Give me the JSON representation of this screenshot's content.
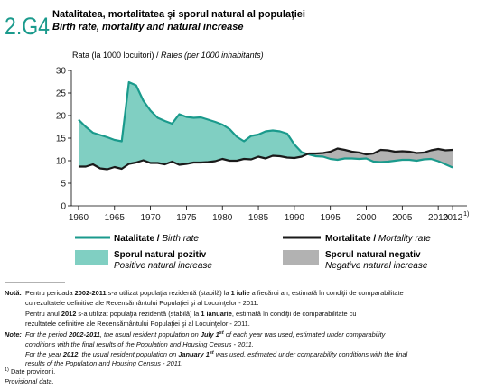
{
  "chart_data": {
    "type": "line",
    "figure_id": "2.G4",
    "title": "Natalitatea, mortalitatea şi sporul natural al populaţiei",
    "subtitle": "Birth rate, mortality and natural increase",
    "y_label": "Rata (la 1000 locuitori) / ",
    "y_label_en": "Rates (per 1000 inhabitants)",
    "x": [
      1960,
      1961,
      1962,
      1963,
      1964,
      1965,
      1966,
      1967,
      1968,
      1969,
      1970,
      1971,
      1972,
      1973,
      1974,
      1975,
      1976,
      1977,
      1978,
      1979,
      1980,
      1981,
      1982,
      1983,
      1984,
      1985,
      1986,
      1987,
      1988,
      1989,
      1990,
      1991,
      1992,
      1993,
      1994,
      1995,
      1996,
      1997,
      1998,
      1999,
      2000,
      2001,
      2002,
      2003,
      2004,
      2005,
      2006,
      2007,
      2008,
      2009,
      2010,
      2011,
      2012
    ],
    "series": [
      {
        "name": "Natalitate /",
        "name_en": "Birth rate",
        "color": "#1a9a8c",
        "values": [
          19.1,
          17.5,
          16.2,
          15.7,
          15.2,
          14.6,
          14.3,
          27.4,
          26.7,
          23.3,
          21.1,
          19.5,
          18.8,
          18.2,
          20.3,
          19.7,
          19.5,
          19.6,
          19.1,
          18.6,
          18.0,
          17.0,
          15.3,
          14.3,
          15.5,
          15.8,
          16.5,
          16.7,
          16.5,
          16.0,
          13.6,
          11.9,
          11.4,
          11.0,
          10.9,
          10.4,
          10.2,
          10.5,
          10.5,
          10.4,
          10.5,
          9.8,
          9.7,
          9.8,
          10.0,
          10.2,
          10.2,
          10.0,
          10.3,
          10.4,
          9.9,
          9.2,
          8.5
        ]
      },
      {
        "name": "Mortalitate /",
        "name_en": "Mortality rate",
        "color": "#1a1a1a",
        "values": [
          8.7,
          8.7,
          9.2,
          8.3,
          8.1,
          8.6,
          8.2,
          9.3,
          9.6,
          10.1,
          9.5,
          9.5,
          9.2,
          9.8,
          9.1,
          9.3,
          9.6,
          9.6,
          9.7,
          9.9,
          10.4,
          10.0,
          10.0,
          10.4,
          10.3,
          10.9,
          10.5,
          11.1,
          11.0,
          10.7,
          10.6,
          10.9,
          11.6,
          11.6,
          11.7,
          12.0,
          12.7,
          12.4,
          12.0,
          11.8,
          11.4,
          11.6,
          12.4,
          12.3,
          12.0,
          12.1,
          12.0,
          11.7,
          11.8,
          12.3,
          12.6,
          12.3,
          12.4
        ]
      }
    ],
    "fill_positive": {
      "name": "Sporul natural pozitiv",
      "name_en": "Positive natural increase",
      "color": "#80cfc2"
    },
    "fill_negative": {
      "name": "Sporul natural negativ",
      "name_en": "Negative natural increase",
      "color": "#b2b2b2"
    },
    "xlim": [
      1959,
      2014
    ],
    "xticks": [
      1960,
      1965,
      1970,
      1975,
      1980,
      1985,
      1990,
      1995,
      2000,
      2005,
      2010,
      2012
    ],
    "x_tick_note": "1)",
    "ylim": [
      0,
      30
    ],
    "yticks": [
      0,
      5,
      10,
      15,
      20,
      25,
      30
    ],
    "grid": false
  },
  "notes": [
    [
      "Notă:",
      "Pentru perioada ",
      "2002-2011",
      " s-a utilizat populaţia rezidentă (stabilă) la ",
      "1 iulie",
      " a fiecărui an, estimată în condiţii de comparabilitate"
    ],
    [
      "cu rezultatele definitive ale Recensământului Populaţiei şi al Locuinţelor - 2011."
    ],
    [
      "Pentru anul ",
      "2012",
      " s-a utilizat populaţia rezidentă (stabilă) la ",
      "1 ianuarie",
      ", estimată în condiţii de comparabilitate cu"
    ],
    [
      "rezultatele definitive ale Recensământului Populaţiei şi al Locuinţelor - 2011."
    ],
    [
      "Note:",
      "For the period ",
      "2002-2011",
      ", the usual resident population on ",
      "July 1",
      "st",
      " of each year was used, estimated under comparability"
    ],
    [
      "conditions with the final results of the Population and Housing Census - 2011."
    ],
    [
      "For the year ",
      "2012",
      ", the usual resident population on ",
      "January 1",
      "st",
      " was used, estimated under comparability conditions with the final"
    ],
    [
      "results of the Population and Housing Census - 2011."
    ],
    [
      "1)",
      " Date provizorii."
    ],
    [
      "Provisional data."
    ]
  ]
}
